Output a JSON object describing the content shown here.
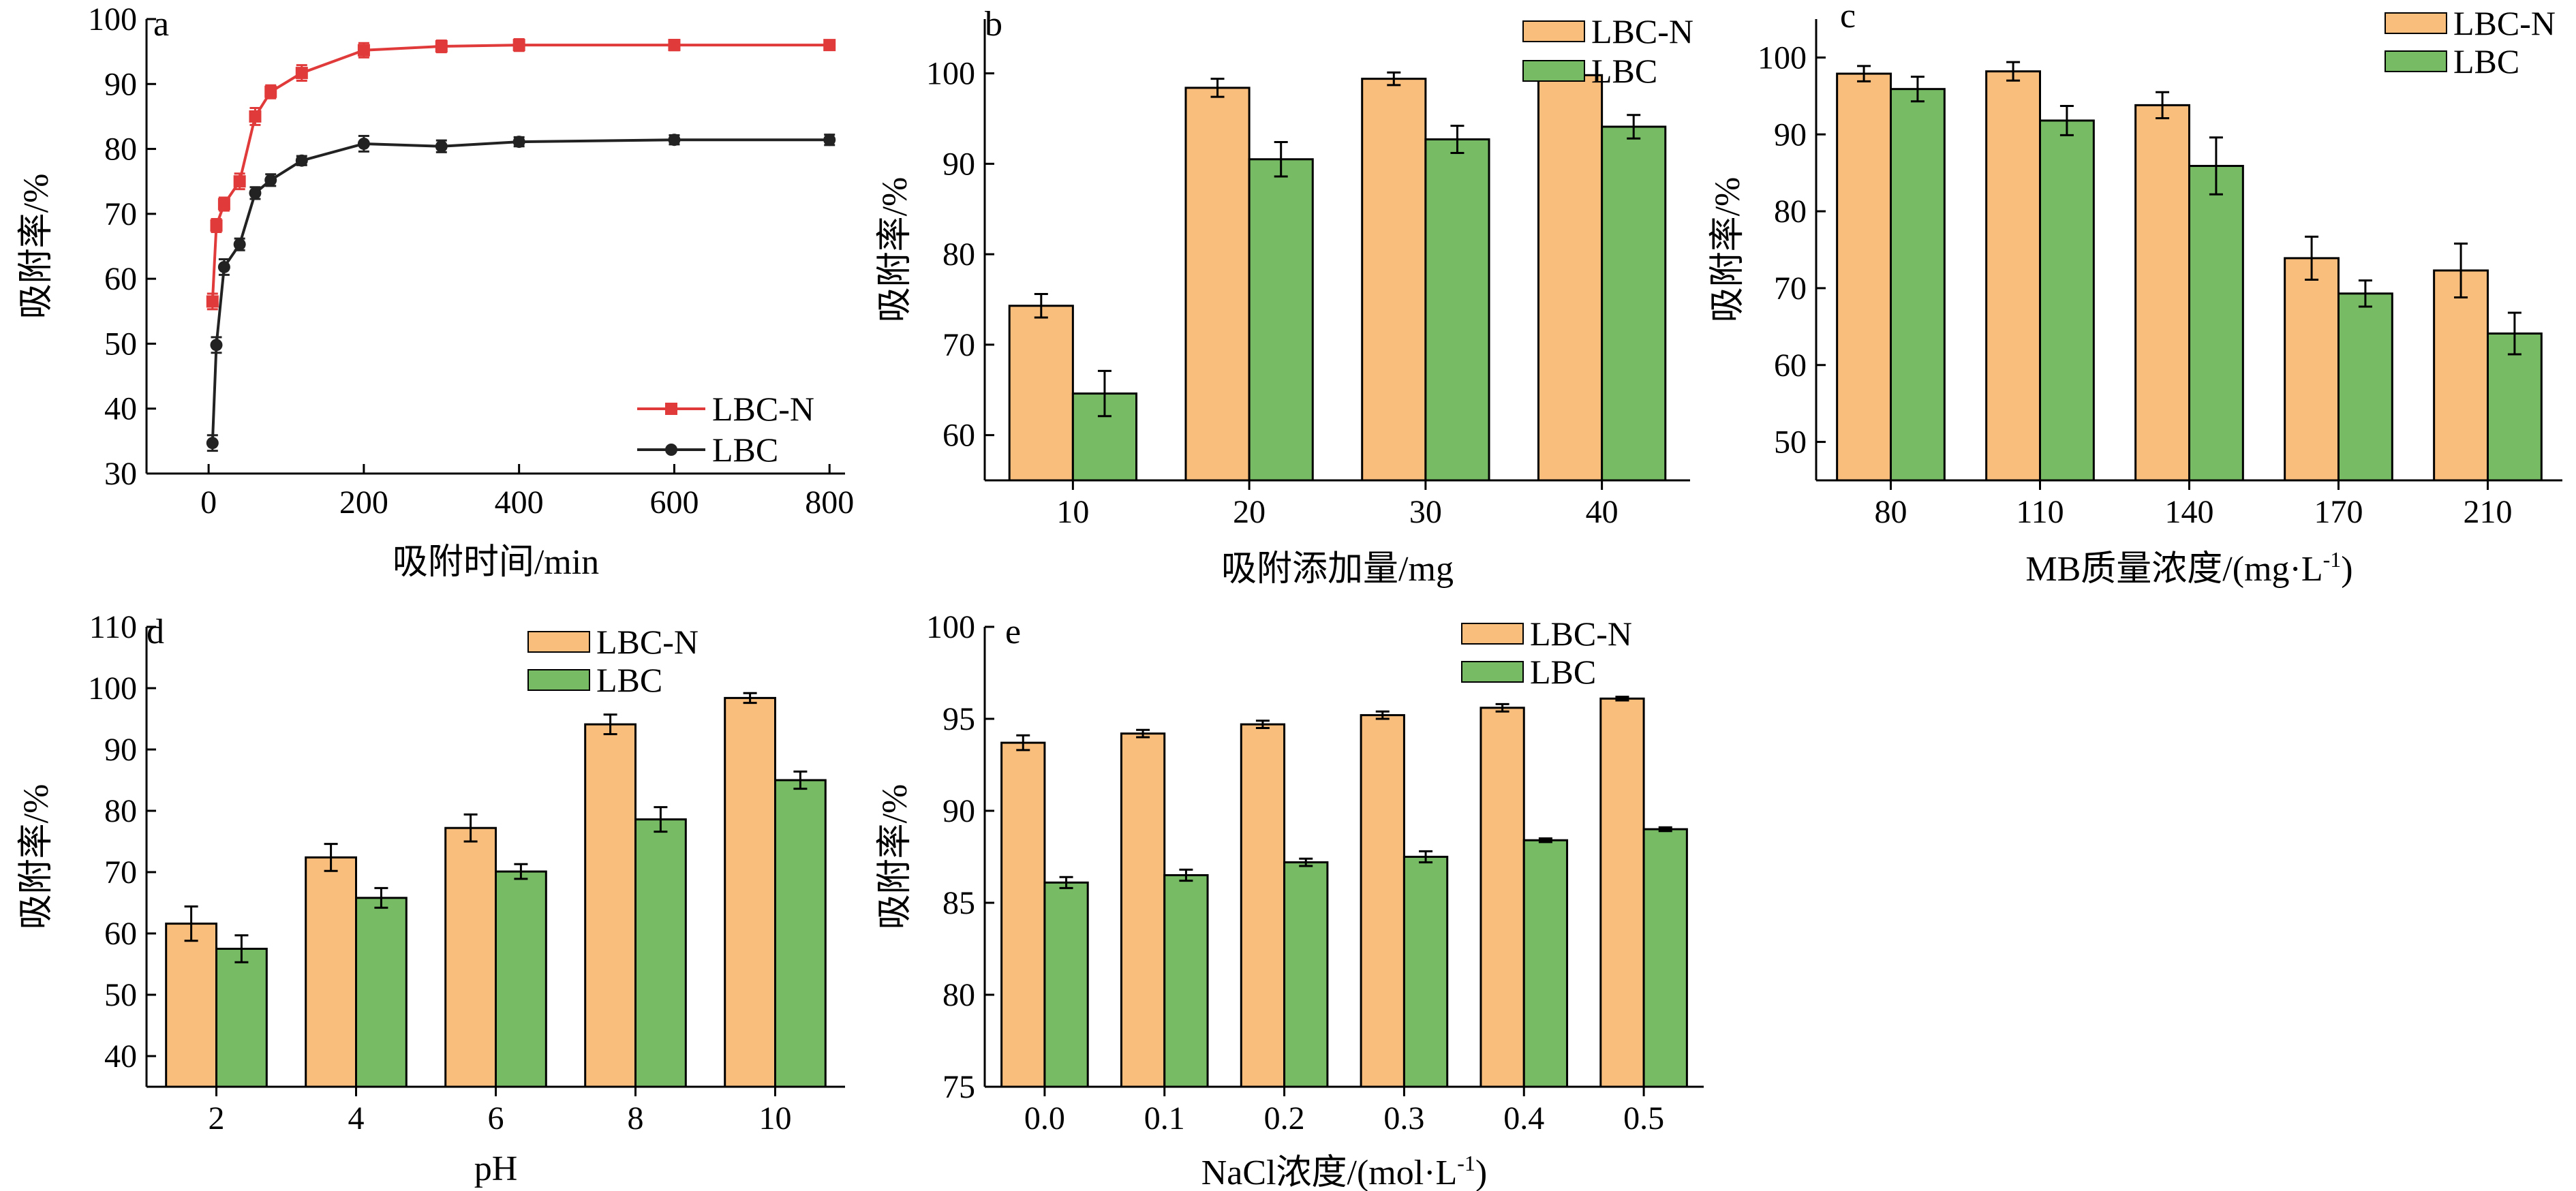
{
  "colors": {
    "lbcn_line": "#e03a3a",
    "lbc_line": "#222222",
    "lbcn_bar": "#f9be7b",
    "lbc_bar": "#77bb65"
  },
  "chart_data": [
    {
      "id": "a",
      "letter": "a",
      "type": "line",
      "xlabel": "吸附时间/min",
      "ylabel": "吸附率/%",
      "xlim": [
        -80,
        820
      ],
      "ylim": [
        30,
        100
      ],
      "xticks": [
        0,
        200,
        400,
        600,
        800
      ],
      "yticks": [
        30,
        40,
        50,
        60,
        70,
        80,
        90,
        100
      ],
      "legend": "bottom-right",
      "series": [
        {
          "name": "LBC-N",
          "marker": "square",
          "x": [
            5,
            10,
            20,
            40,
            60,
            80,
            120,
            200,
            300,
            400,
            600,
            800
          ],
          "y": [
            56.5,
            68.2,
            71.5,
            75.0,
            85.0,
            88.8,
            91.7,
            95.2,
            95.8,
            96.0,
            96.0,
            96.0
          ],
          "err": [
            1.2,
            1.0,
            1.0,
            1.2,
            1.3,
            1.0,
            1.2,
            1.1,
            0.9,
            0.9,
            0.8,
            0.6
          ]
        },
        {
          "name": "LBC",
          "marker": "circle",
          "x": [
            5,
            10,
            20,
            40,
            60,
            80,
            120,
            200,
            300,
            400,
            600,
            800
          ],
          "y": [
            34.7,
            49.8,
            61.8,
            65.3,
            73.2,
            75.2,
            78.2,
            80.8,
            80.4,
            81.1,
            81.4,
            81.4
          ],
          "err": [
            1.2,
            1.2,
            1.2,
            0.9,
            0.9,
            0.9,
            0.7,
            1.2,
            0.9,
            0.7,
            0.7,
            0.8
          ]
        }
      ]
    },
    {
      "id": "b",
      "letter": "b",
      "type": "bar",
      "xlabel": "吸附添加量/mg",
      "ylabel": "吸附率/%",
      "ylim": [
        55,
        106
      ],
      "yticks": [
        60,
        70,
        80,
        90,
        100
      ],
      "categories": [
        "10",
        "20",
        "30",
        "40"
      ],
      "legend": "top-right",
      "series": [
        {
          "name": "LBC-N",
          "values": [
            74.3,
            98.4,
            99.4,
            99.8
          ],
          "err": [
            1.3,
            1.0,
            0.7,
            0.3
          ]
        },
        {
          "name": "LBC",
          "values": [
            64.6,
            90.5,
            92.7,
            94.1
          ],
          "err": [
            2.5,
            1.9,
            1.5,
            1.3
          ]
        }
      ]
    },
    {
      "id": "c",
      "letter": "c",
      "type": "bar",
      "xlabel": "MB质量浓度/(mg·L",
      "xlabel_sup": "-1",
      "xlabel_tail": ")",
      "ylabel": "吸附率/%",
      "ylim": [
        45,
        105
      ],
      "yticks": [
        50,
        60,
        70,
        80,
        90,
        100
      ],
      "categories": [
        "80",
        "110",
        "140",
        "170",
        "210"
      ],
      "legend": "top-right",
      "series": [
        {
          "name": "LBC-N",
          "values": [
            97.9,
            98.2,
            93.8,
            73.9,
            72.3
          ],
          "err": [
            1.0,
            1.2,
            1.7,
            2.8,
            3.5
          ]
        },
        {
          "name": "LBC",
          "values": [
            95.9,
            91.8,
            85.9,
            69.3,
            64.1
          ],
          "err": [
            1.6,
            1.9,
            3.7,
            1.7,
            2.7
          ]
        }
      ]
    },
    {
      "id": "d",
      "letter": "d",
      "type": "bar",
      "xlabel": "pH",
      "ylabel": "吸附率/%",
      "ylim": [
        35,
        110
      ],
      "yticks": [
        40,
        50,
        60,
        70,
        80,
        90,
        100,
        110
      ],
      "categories": [
        "2",
        "4",
        "6",
        "8",
        "10"
      ],
      "legend": "top-right",
      "series": [
        {
          "name": "LBC-N",
          "values": [
            61.6,
            72.4,
            77.2,
            94.1,
            98.4
          ],
          "err": [
            2.8,
            2.2,
            2.2,
            1.6,
            0.8
          ]
        },
        {
          "name": "LBC",
          "values": [
            57.5,
            65.8,
            70.1,
            78.6,
            85.0
          ],
          "err": [
            2.2,
            1.6,
            1.2,
            2.0,
            1.4
          ]
        }
      ]
    },
    {
      "id": "e",
      "letter": "e",
      "type": "bar",
      "xlabel": "NaCl浓度/(mol·L",
      "xlabel_sup": "-1",
      "xlabel_tail": ")",
      "ylabel": "吸附率/%",
      "ylim": [
        75,
        100
      ],
      "yticks": [
        75,
        80,
        85,
        90,
        95,
        100
      ],
      "categories": [
        "0.0",
        "0.1",
        "0.2",
        "0.3",
        "0.4",
        "0.5"
      ],
      "legend": "top-right",
      "series": [
        {
          "name": "LBC-N",
          "values": [
            93.7,
            94.2,
            94.7,
            95.2,
            95.6,
            96.1
          ],
          "err": [
            0.4,
            0.2,
            0.2,
            0.2,
            0.2,
            0.1
          ]
        },
        {
          "name": "LBC",
          "values": [
            86.1,
            86.5,
            87.2,
            87.5,
            88.4,
            89.0
          ],
          "err": [
            0.3,
            0.3,
            0.2,
            0.3,
            0.1,
            0.1
          ]
        }
      ]
    }
  ]
}
